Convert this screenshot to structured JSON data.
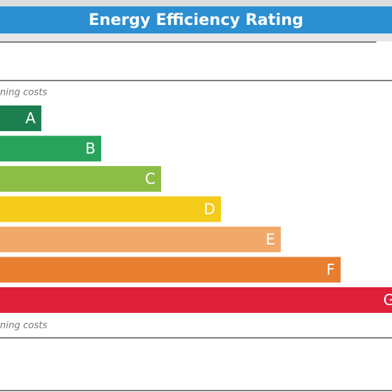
{
  "header": {
    "title": "Energy Efficiency Rating"
  },
  "top_note": "ning costs",
  "bottom_note": "ning costs",
  "bands": [
    {
      "letter": "A",
      "color": "#1b7f4f"
    },
    {
      "letter": "B",
      "color": "#27a45a"
    },
    {
      "letter": "C",
      "color": "#8cbd45"
    },
    {
      "letter": "D",
      "color": "#f4cb18"
    },
    {
      "letter": "E",
      "color": "#f1a96b"
    },
    {
      "letter": "F",
      "color": "#e87f30"
    },
    {
      "letter": "G",
      "color": "#de203b"
    }
  ]
}
